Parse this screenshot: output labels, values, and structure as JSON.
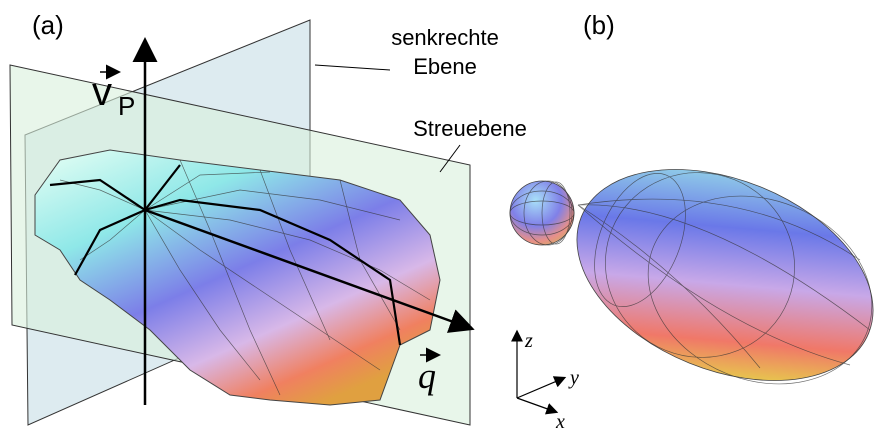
{
  "panel_a": {
    "label": "(a)",
    "perpendicular_plane": [
      "senkrechte",
      "Ebene"
    ],
    "scattering_plane": "Streuebene",
    "vector_v": {
      "symbol": "v",
      "subscript": "P"
    },
    "vector_q": "q"
  },
  "panel_b": {
    "label": "(b)",
    "axes": {
      "z": "z",
      "y": "y",
      "x": "x"
    }
  }
}
